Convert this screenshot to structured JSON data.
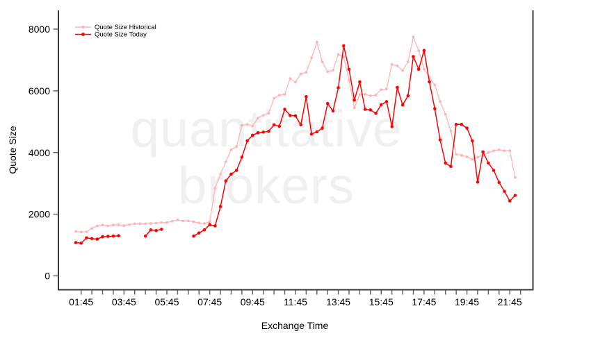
{
  "watermark": {
    "line1": "quantitative",
    "line2": "brokers"
  },
  "legend": [
    {
      "label": "Quote Size Historical",
      "color": "#FFB3B6"
    },
    {
      "label": "Quote Size Today",
      "color": "#FF0000"
    }
  ],
  "axes": {
    "x_label": "Exchange Time",
    "y_label": "Quote Size",
    "y_tick_labels": [
      "0",
      "2000",
      "4000",
      "6000",
      "8000"
    ],
    "x_tick_labels": [
      "01:45",
      "03:45",
      "05:45",
      "07:45",
      "09:45",
      "11:45",
      "13:45",
      "15:45",
      "17:45",
      "19:45",
      "21:45"
    ]
  },
  "colors": {
    "background": "#ffffff",
    "axis_frame": "#383838",
    "tick": "#666666",
    "historical": "#FFB3B6",
    "today": "#FF0000",
    "watermark": "#f0f0f0"
  },
  "chart_data": {
    "type": "line",
    "title": "",
    "xlabel": "Exchange Time",
    "ylabel": "Quote Size",
    "ylim": [
      0,
      8400
    ],
    "y_ticks": [
      0,
      2000,
      4000,
      6000,
      8000
    ],
    "x_tick_interval_minutes": 30,
    "x_labeled_tick_times": [
      "01:45",
      "03:45",
      "05:45",
      "07:45",
      "09:45",
      "11:45",
      "13:45",
      "15:45",
      "17:45",
      "19:45",
      "21:45"
    ],
    "x_minor_tick_range": [
      "01:45",
      "22:15"
    ],
    "legend_position": "top-left",
    "grid": false,
    "x": [
      "01:30",
      "01:45",
      "02:00",
      "02:15",
      "02:30",
      "02:45",
      "03:00",
      "03:15",
      "03:30",
      "03:45",
      "04:00",
      "04:15",
      "04:30",
      "04:45",
      "05:00",
      "05:15",
      "05:30",
      "05:45",
      "06:00",
      "06:15",
      "06:30",
      "06:45",
      "07:00",
      "07:15",
      "07:30",
      "07:45",
      "08:00",
      "08:15",
      "08:30",
      "08:45",
      "09:00",
      "09:15",
      "09:30",
      "09:45",
      "10:00",
      "10:15",
      "10:30",
      "10:45",
      "11:00",
      "11:15",
      "11:30",
      "11:45",
      "12:00",
      "12:15",
      "12:30",
      "12:45",
      "13:00",
      "13:15",
      "13:30",
      "13:45",
      "14:00",
      "14:15",
      "14:30",
      "14:45",
      "15:00",
      "15:15",
      "15:30",
      "15:45",
      "16:00",
      "16:15",
      "16:30",
      "16:45",
      "17:00",
      "17:15",
      "17:30",
      "17:45",
      "18:00",
      "18:15",
      "18:30",
      "18:45",
      "19:00",
      "19:15",
      "19:30",
      "19:45",
      "20:00",
      "20:15",
      "20:30",
      "20:45",
      "21:00",
      "21:15",
      "21:30",
      "21:45",
      "22:00"
    ],
    "series": [
      {
        "name": "Quote Size Historical",
        "color": "#FFB3B6",
        "values": [
          1440,
          1420,
          1430,
          1540,
          1620,
          1650,
          1620,
          1650,
          1660,
          1630,
          1660,
          1690,
          1690,
          1690,
          1700,
          1710,
          1730,
          1730,
          1770,
          1820,
          1780,
          1780,
          1750,
          1720,
          1700,
          1750,
          2840,
          3300,
          3700,
          4090,
          4190,
          4880,
          4910,
          4860,
          5120,
          5210,
          5270,
          5760,
          5860,
          5890,
          6400,
          6280,
          6550,
          6600,
          7070,
          7580,
          6940,
          6620,
          6670,
          7180,
          7100,
          6350,
          5450,
          5880,
          5890,
          5840,
          5860,
          6040,
          6060,
          6860,
          6810,
          6660,
          6940,
          7750,
          7300,
          6700,
          6430,
          6190,
          5650,
          5240,
          4700,
          3940,
          3910,
          3860,
          3780,
          3850,
          3910,
          4000,
          4060,
          4090,
          4060,
          4060,
          3190
        ]
      },
      {
        "name": "Quote Size Today",
        "color": "#FF0000",
        "values": [
          1080,
          1060,
          1230,
          1210,
          1190,
          1270,
          1280,
          1290,
          1300,
          null,
          null,
          null,
          null,
          1290,
          1490,
          1470,
          1510,
          null,
          null,
          null,
          null,
          null,
          1290,
          1390,
          1490,
          1660,
          1620,
          2250,
          3080,
          3300,
          3420,
          3850,
          4380,
          4560,
          4640,
          4660,
          4690,
          4900,
          4850,
          5400,
          5200,
          5190,
          4900,
          5810,
          4600,
          4670,
          4790,
          5590,
          5350,
          6100,
          7460,
          6700,
          5700,
          6290,
          5400,
          5380,
          5270,
          5550,
          5650,
          4840,
          6110,
          5540,
          5840,
          7110,
          6700,
          7310,
          6290,
          5420,
          4410,
          3660,
          3550,
          4910,
          4910,
          4790,
          4380,
          3040,
          4020,
          3660,
          3420,
          3030,
          2740,
          2430,
          2610
        ]
      }
    ]
  }
}
